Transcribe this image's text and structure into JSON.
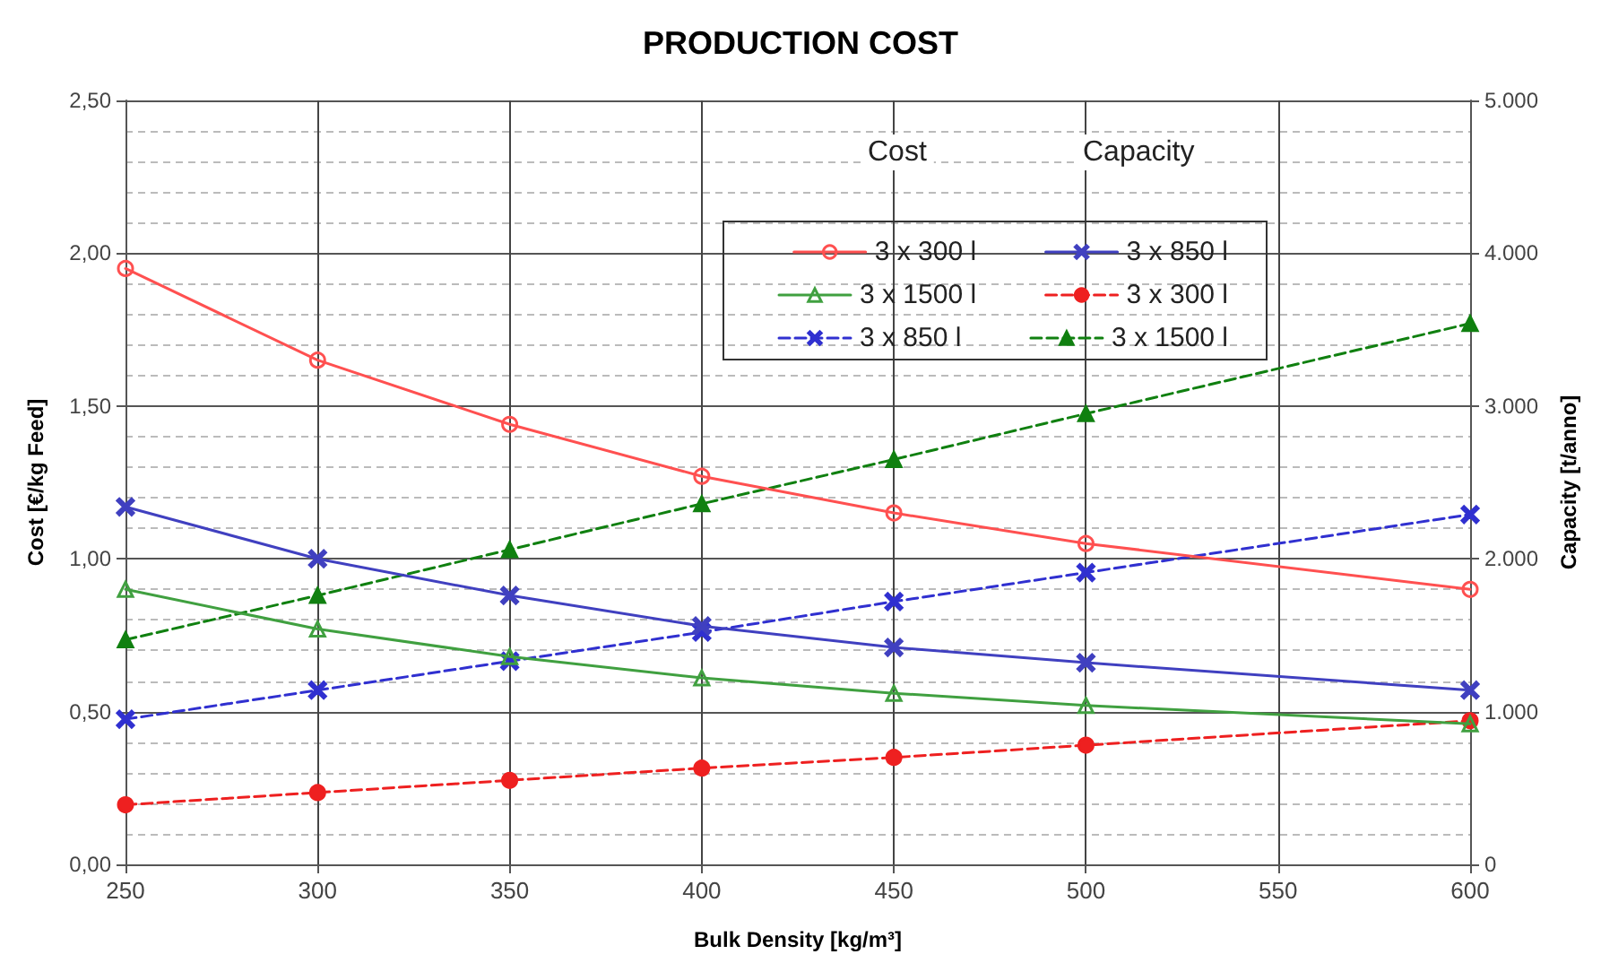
{
  "chart_data": {
    "type": "line",
    "title": "PRODUCTION COST",
    "xlabel": "Bulk Density [kg/m³]",
    "ylabel": "Cost [€/kg Feed]",
    "y2label": "Capacity [t/anno]",
    "annotations": [
      "Cost",
      "Capacity"
    ],
    "x": [
      250,
      300,
      350,
      400,
      450,
      500,
      600
    ],
    "series": [
      {
        "name": "3 x 300 l",
        "color": "#ff5050",
        "values": [
          1.95,
          1.65,
          1.44,
          1.27,
          1.15,
          1.05,
          0.9
        ],
        "line_style": "solid",
        "marker": "circle"
      },
      {
        "name": "3 x 850 l",
        "color": "#4040c0",
        "values": [
          1.17,
          1.0,
          0.88,
          0.78,
          0.71,
          0.66,
          0.57
        ],
        "line_style": "solid",
        "marker": "cross"
      },
      {
        "name": "3 x 1500 l",
        "color": "#40a040",
        "values": [
          0.9,
          0.77,
          0.68,
          0.61,
          0.56,
          0.52,
          0.46
        ],
        "line_style": "solid",
        "marker": "triangle"
      },
      {
        "name": "3 x 300 l",
        "color": "#ee2020",
        "axis": "y2",
        "values": [
          390,
          470,
          550,
          630,
          700,
          780,
          940
        ],
        "line_style": "dashed",
        "marker": "circle"
      },
      {
        "name": "3 x 850 l",
        "color": "#3030d0",
        "axis": "y2",
        "values": [
          950,
          1140,
          1330,
          1520,
          1720,
          1910,
          2290
        ],
        "line_style": "dashed",
        "marker": "cross"
      },
      {
        "name": "3 x 1500 l",
        "color": "#108010",
        "axis": "y2",
        "values": [
          1470,
          1760,
          2060,
          2360,
          2650,
          2950,
          3540
        ],
        "line_style": "dashed",
        "marker": "triangle"
      }
    ],
    "xlim": [
      250,
      600
    ],
    "xticks": [
      250,
      300,
      350,
      400,
      450,
      500,
      550,
      600
    ],
    "ylim": [
      0,
      2.5
    ],
    "yticks": [
      {
        "value": 0,
        "label": "0,00"
      },
      {
        "value": 0.5,
        "label": "0,50"
      },
      {
        "value": 1,
        "label": "1,00"
      },
      {
        "value": 1.5,
        "label": "1,50"
      },
      {
        "value": 2,
        "label": "2,00"
      },
      {
        "value": 2.5,
        "label": "2,50"
      }
    ],
    "y2lim": [
      0,
      5000
    ],
    "y2ticks": [
      0,
      {
        "value": 1000,
        "label": "1.000"
      },
      {
        "value": 2000,
        "label": "2.000"
      },
      {
        "value": 3000,
        "label": "3.000"
      },
      {
        "value": 4000,
        "label": "4.000"
      },
      {
        "value": 5000,
        "label": "5.000"
      }
    ],
    "grid": true,
    "legend": "top right"
  }
}
